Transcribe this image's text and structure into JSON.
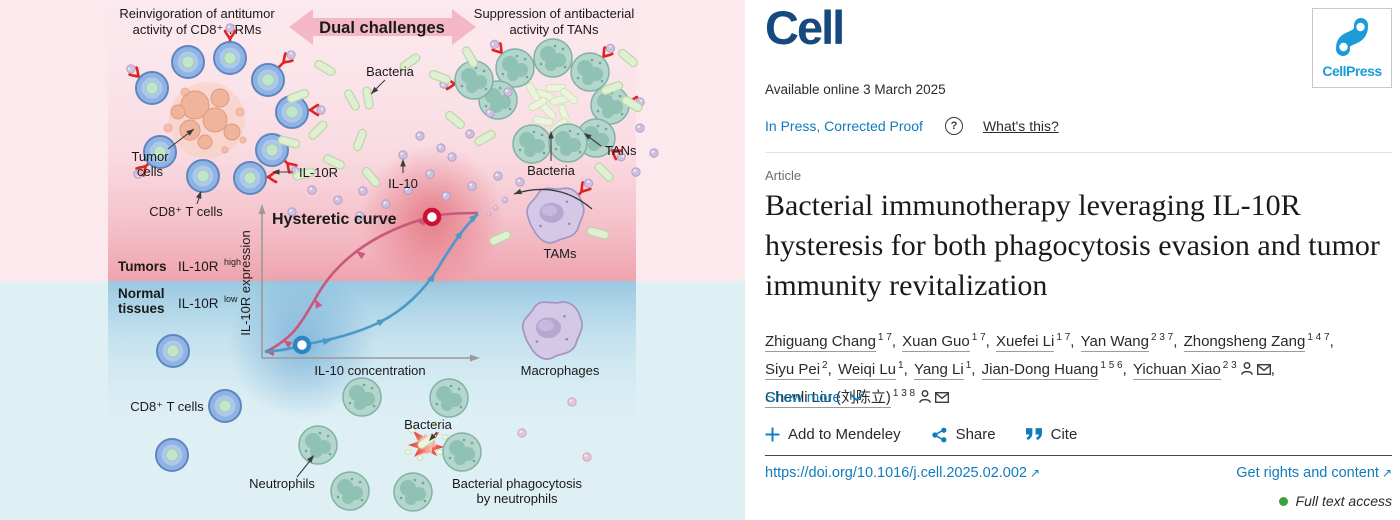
{
  "figure": {
    "labels": {
      "reinvig1": "Reinvigoration of antitumor",
      "reinvig2": "activity of CD8⁺ TRMs",
      "dual": "Dual challenges",
      "supp1": "Suppression of antibacterial",
      "supp2": "activity of TANs",
      "bacteria_top": "Bacteria",
      "tumor1": "Tumor",
      "tumor2": "cells",
      "cd8_top": "CD8⁺ T cells",
      "il10r": "IL-10R",
      "il10": "IL-10",
      "hysteretic": "Hysteretic curve",
      "tumors": "Tumors",
      "il10r_high": "IL-10R",
      "high": "high",
      "normal1": "Normal",
      "normal2": "tissues",
      "il10r_low": "IL-10R",
      "low": "low",
      "yaxis": "IL-10R expression",
      "xaxis": "IL-10 concentration",
      "bacteria_right": "Bacteria",
      "tans": "TANs",
      "tams": "TAMs",
      "macrophages": "Macrophages",
      "cd8_bottom": "CD8⁺ T cells",
      "neutrophils": "Neutrophils",
      "bacteria_bottom": "Bacteria",
      "phago1": "Bacterial phagocytosis",
      "phago2": "by neutrophils"
    }
  },
  "header": {
    "journal": "Cell",
    "cellpress": "CellPress",
    "available": "Available online 3 March 2025",
    "in_press": "In Press, Corrected Proof",
    "question": "?",
    "whats_this": "What's this?"
  },
  "article": {
    "type": "Article",
    "title": "Bacterial immunotherapy leveraging IL-10R hysteresis for both phagocytosis evasion and tumor immunity revitalization",
    "show_more": "Show more"
  },
  "authors": [
    {
      "name": "Zhiguang Chang",
      "sups": "1 7"
    },
    {
      "name": "Xuan Guo",
      "sups": "1 7"
    },
    {
      "name": "Xuefei Li",
      "sups": "1 7"
    },
    {
      "name": "Yan Wang",
      "sups": "2 3 7"
    },
    {
      "name": "Zhongsheng Zang",
      "sups": "1 4 7"
    },
    {
      "name": "Siyu Pei",
      "sups": "2"
    },
    {
      "name": "Weiqi Lu",
      "sups": "1"
    },
    {
      "name": "Yang Li",
      "sups": "1"
    },
    {
      "name": "Jian-Dong Huang",
      "sups": "1 5 6"
    },
    {
      "name": "Yichuan Xiao",
      "sups": "2 3",
      "person": true,
      "email": true
    },
    {
      "name": "Chenli Liu (刘陈立)",
      "sups": "1 3 8",
      "person": true,
      "email": true
    }
  ],
  "actions": {
    "mendeley": "Add to Mendeley",
    "share": "Share",
    "cite": "Cite"
  },
  "links": {
    "doi": "https://doi.org/10.1016/j.cell.2025.02.002",
    "rights": "Get rights and content",
    "access": "Full text access",
    "external": "↗"
  },
  "colors": {
    "accent_blue": "#0f7dbc",
    "cell_navy": "#16497d",
    "cellpress_blue": "#1b9cd8",
    "access_green": "#3da23d",
    "figure_pink": "#fbe9ee",
    "figure_blue": "#dff0f5",
    "curve_red": "#c9577e",
    "curve_blue": "#4a9ac6"
  }
}
